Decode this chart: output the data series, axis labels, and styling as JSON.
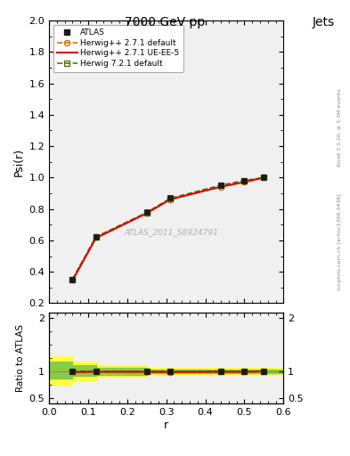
{
  "title": "7000 GeV pp",
  "title_right": "Jets",
  "ylabel_main": "Psi(r)",
  "ylabel_ratio": "Ratio to ATLAS",
  "xlabel": "r",
  "watermark": "ATLAS_2011_S8924791",
  "right_label_top": "Rivet 3.1.10, ≥ 3.3M events",
  "right_label_bottom": "mcplots.cern.ch [arXiv:1306.3436]",
  "r_values": [
    0.06,
    0.12,
    0.25,
    0.31,
    0.44,
    0.5,
    0.55
  ],
  "atlas_psi": [
    0.35,
    0.62,
    0.78,
    0.87,
    0.95,
    0.98,
    1.0
  ],
  "atlas_err": [
    0.015,
    0.015,
    0.015,
    0.015,
    0.015,
    0.015,
    0.015
  ],
  "herwig_default_psi": [
    0.352,
    0.622,
    0.775,
    0.862,
    0.942,
    0.972,
    1.0
  ],
  "herwig_ueee5_psi": [
    0.345,
    0.615,
    0.773,
    0.861,
    0.942,
    0.972,
    1.0
  ],
  "herwig721_psi": [
    0.352,
    0.622,
    0.778,
    0.868,
    0.952,
    0.982,
    1.0
  ],
  "ratio_herwig_default": [
    1.006,
    1.003,
    0.994,
    0.99,
    0.992,
    0.992,
    1.0
  ],
  "ratio_herwig_ueee5": [
    0.986,
    0.992,
    0.991,
    0.989,
    0.992,
    0.992,
    1.0
  ],
  "ratio_herwig721": [
    1.006,
    1.003,
    0.997,
    0.997,
    1.002,
    1.002,
    1.0
  ],
  "ylim_main": [
    0.2,
    2.0
  ],
  "ylim_ratio": [
    0.4,
    2.1
  ],
  "color_atlas": "#1a1a1a",
  "color_herwig_default": "#cc7700",
  "color_herwig_ueee5": "#dd0000",
  "color_herwig721": "#557700",
  "color_band_yellow": "#ffff44",
  "color_band_green": "#88cc44",
  "bg_color": "#f0f0f0"
}
